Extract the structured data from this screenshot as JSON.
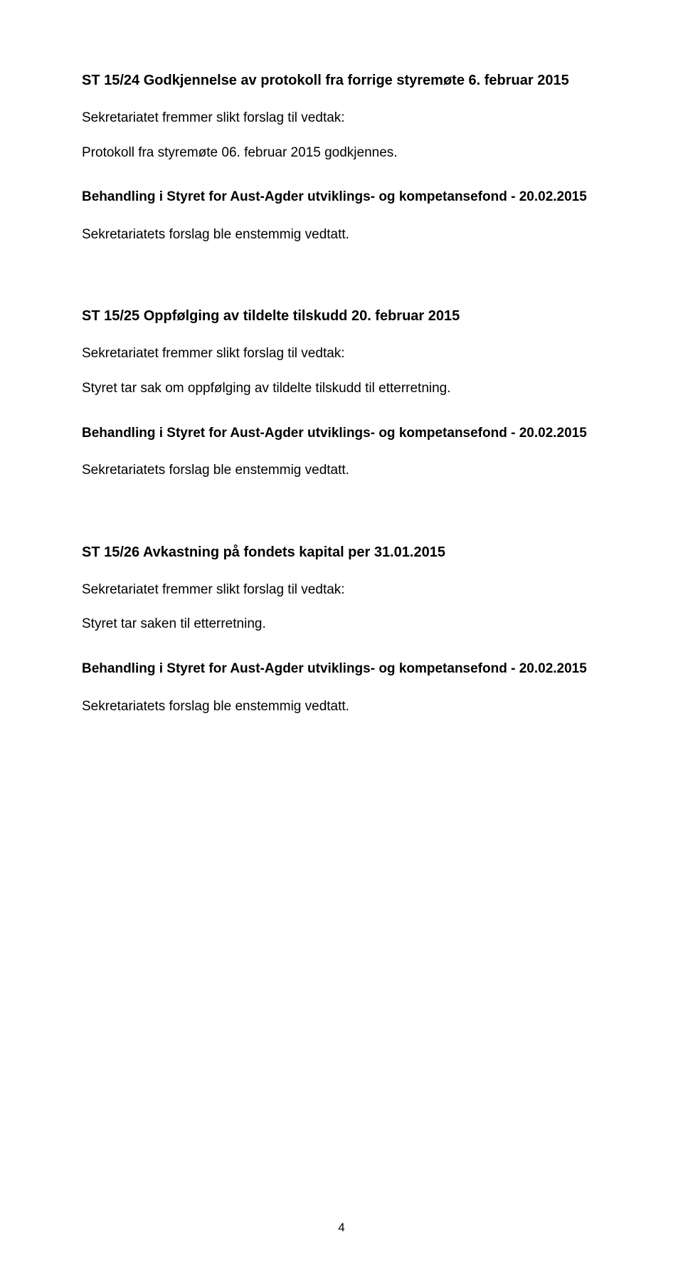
{
  "sections": [
    {
      "heading": "ST 15/24 Godkjennelse av protokoll fra forrige styremøte 6. februar 2015",
      "intro": "Sekretariatet fremmer slikt forslag til vedtak:",
      "proposal": "Protokoll fra styremøte 06. februar 2015 godkjennes.",
      "behandling": "Behandling i Styret for Aust-Agder utviklings- og kompetansefond - 20.02.2015",
      "result": "Sekretariatets forslag ble enstemmig vedtatt."
    },
    {
      "heading": "ST 15/25 Oppfølging av tildelte tilskudd 20. februar 2015",
      "intro": "Sekretariatet fremmer slikt forslag til vedtak:",
      "proposal": "Styret tar sak om oppfølging av tildelte tilskudd til etterretning.",
      "behandling": "Behandling i Styret for Aust-Agder utviklings- og kompetansefond - 20.02.2015",
      "result": "Sekretariatets forslag ble enstemmig vedtatt."
    },
    {
      "heading": "ST 15/26 Avkastning på fondets kapital per 31.01.2015",
      "intro": "Sekretariatet fremmer slikt forslag til vedtak:",
      "proposal": "Styret tar saken til etterretning.",
      "behandling": "Behandling i Styret for Aust-Agder utviklings- og kompetansefond - 20.02.2015",
      "result": "Sekretariatets forslag ble enstemmig vedtatt."
    }
  ],
  "page_number": "4"
}
